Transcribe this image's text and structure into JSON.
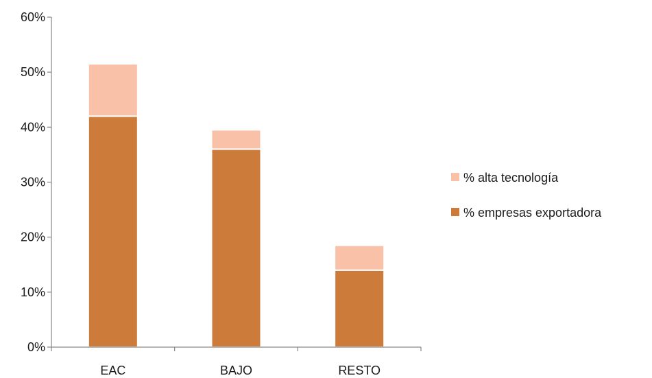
{
  "chart_data": {
    "type": "bar",
    "stacked": true,
    "categories": [
      "EAC",
      "BAJO",
      "RESTO"
    ],
    "series": [
      {
        "name": "% empresas exportadora",
        "values": [
          0.42,
          0.36,
          0.14
        ],
        "color": "#CD7B3A"
      },
      {
        "name": "% alta tecnología",
        "values": [
          0.095,
          0.035,
          0.045
        ],
        "color": "#F8C1A8"
      }
    ],
    "ylim": [
      0,
      0.6
    ],
    "yticks": [
      {
        "value": 0.0,
        "label": "0%"
      },
      {
        "value": 0.1,
        "label": "10%"
      },
      {
        "value": 0.2,
        "label": "20%"
      },
      {
        "value": 0.3,
        "label": "30%"
      },
      {
        "value": 0.4,
        "label": "40%"
      },
      {
        "value": 0.5,
        "label": "50%"
      },
      {
        "value": 0.6,
        "label": "60%"
      }
    ],
    "title": "",
    "xlabel": "",
    "ylabel": "",
    "grid": false,
    "legend_position": "right",
    "legend_order": [
      1,
      0
    ]
  }
}
